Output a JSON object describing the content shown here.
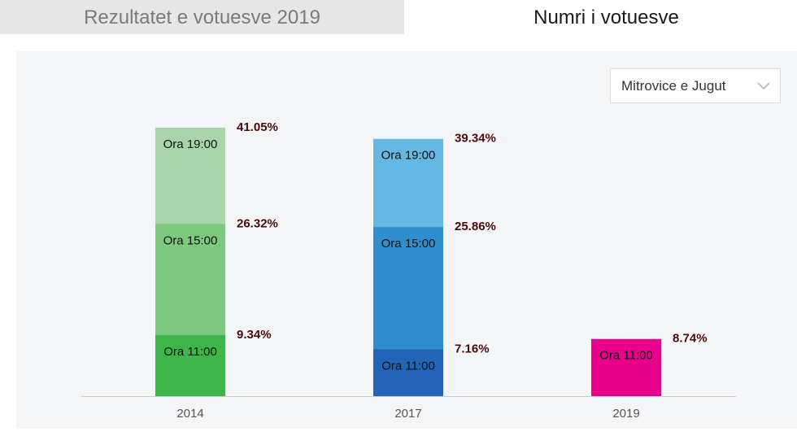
{
  "tabs": [
    "Rezultatet e votuesve 2019",
    "Numri i votuesve"
  ],
  "dropdown": "Mitrovice e Jugut",
  "chart_data": {
    "type": "bar",
    "categories": [
      "2014",
      "2017",
      "2019"
    ],
    "series": [
      {
        "name": "Ora 11:00",
        "colors": [
          "#3db54a",
          "#2265b8",
          "#e8008a"
        ],
        "values": [
          9.34,
          7.16,
          8.74
        ],
        "value_labels": [
          "9.34%",
          "7.16%",
          "8.74%"
        ]
      },
      {
        "name": "Ora 15:00",
        "colors": [
          "#7dc97f",
          "#2f8fce",
          null
        ],
        "values": [
          26.32,
          25.86,
          null
        ],
        "value_labels": [
          "26.32%",
          "25.86%",
          null
        ]
      },
      {
        "name": "Ora 19:00",
        "colors": [
          "#a9d3a9",
          "#64b8e2",
          null
        ],
        "values": [
          41.05,
          39.34,
          null
        ],
        "value_labels": [
          "41.05%",
          "39.34%",
          null
        ]
      }
    ]
  }
}
